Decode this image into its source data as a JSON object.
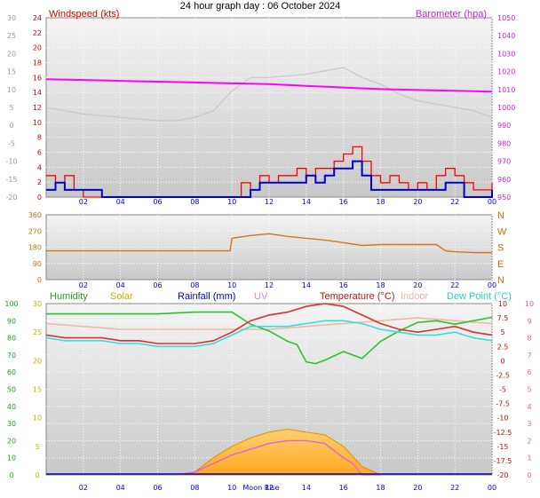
{
  "title": "24 hour graph day : 06 October 2024",
  "colors": {
    "wind_avg": "#0000cc",
    "wind_gust": "#ff0000",
    "barometer": "#ff00ff",
    "temperature_bg": "#c8c8c8",
    "direction": "#d07818",
    "temperature": "#d83030",
    "dew_point": "#30e0e0",
    "humidity": "#30c030",
    "indoor": "#f0b8a0",
    "uv": "#e060e0",
    "solar": "#ffb020",
    "rainfall": "#0000cc"
  },
  "x_ticks": [
    "02",
    "04",
    "06",
    "08",
    "10",
    "12",
    "14",
    "16",
    "18",
    "20",
    "22",
    "00"
  ],
  "moon_rise_label": "Moon Rise",
  "chart_data": [
    {
      "type": "line",
      "panel": "wind-barometer",
      "x_unit": "hours",
      "left_axis": {
        "label": "Windspeed (kts)",
        "ticks": [
          "0",
          "2",
          "4",
          "6",
          "8",
          "10",
          "12",
          "14",
          "16",
          "18",
          "20",
          "22",
          "24"
        ],
        "range": [
          0,
          25
        ]
      },
      "outer_left_axis": {
        "ticks": [
          "-20",
          "-15",
          "-10",
          "-5",
          "0",
          "5",
          "10",
          "15",
          "20",
          "25",
          "30"
        ],
        "range": [
          -22,
          32
        ]
      },
      "right_axis": {
        "label": "Barometer (hpa)",
        "ticks": [
          "950",
          "960",
          "970",
          "980",
          "990",
          "1000",
          "1010",
          "1020",
          "1030",
          "1040",
          "1050"
        ],
        "range": [
          946,
          1054
        ]
      },
      "series": [
        {
          "name": "Barometer (hpa)",
          "axis": "right",
          "x": [
            0,
            2,
            4,
            6,
            8,
            10,
            12,
            14,
            16,
            18,
            20,
            22,
            24
          ],
          "values": [
            1017,
            1016.5,
            1016,
            1015.5,
            1015,
            1014.5,
            1014,
            1013,
            1012,
            1011,
            1010.5,
            1010,
            1009.5
          ]
        },
        {
          "axis": "outer_left",
          "x": [
            0,
            1,
            2,
            4,
            6,
            7,
            8,
            9,
            10,
            11,
            12,
            14,
            15,
            16,
            17,
            18,
            19,
            20,
            21,
            22,
            23,
            24
          ],
          "values": [
            5,
            4,
            3,
            2,
            1,
            1,
            2,
            4,
            10,
            14,
            14,
            15,
            16,
            17,
            14,
            12,
            9,
            7,
            6,
            5,
            4,
            2
          ]
        },
        {
          "axis": "left",
          "x": [
            0,
            0.5,
            1,
            2,
            3,
            4,
            5,
            6,
            7,
            8,
            9,
            10,
            11,
            11.5,
            12,
            13,
            14,
            14.5,
            15,
            15.5,
            16,
            16.5,
            17,
            17.5,
            18,
            19,
            20,
            21,
            21.5,
            22,
            22.5,
            23,
            24
          ],
          "values": [
            1,
            2,
            1,
            1,
            0,
            0,
            0,
            0,
            0,
            0,
            0,
            0,
            1,
            2,
            2,
            2,
            3,
            2,
            3,
            4,
            4,
            5,
            3,
            1,
            1,
            1,
            1,
            1,
            2,
            2,
            0,
            0,
            1
          ]
        },
        {
          "axis": "left",
          "x": [
            0,
            0.5,
            1,
            1.5,
            2,
            3,
            4,
            5,
            6,
            7,
            8,
            9,
            10,
            10.5,
            11,
            11.5,
            12,
            12.5,
            13,
            13.5,
            14,
            14.5,
            15,
            15.5,
            16,
            16.5,
            17,
            17.5,
            18,
            18.5,
            19,
            19.5,
            20,
            20.5,
            21,
            21.5,
            22,
            22.5,
            23,
            23.5,
            24
          ],
          "values": [
            3,
            2,
            3,
            1,
            0,
            0,
            0,
            0,
            0,
            0,
            0,
            0,
            0,
            2,
            1,
            3,
            2,
            3,
            3,
            4,
            3,
            4,
            4,
            5,
            6,
            7,
            5,
            3,
            2,
            3,
            2,
            1,
            2,
            1,
            3,
            4,
            3,
            2,
            1,
            1,
            2
          ]
        }
      ]
    },
    {
      "type": "line",
      "panel": "wind-direction",
      "x_unit": "hours",
      "left_axis": {
        "ticks": [
          "0",
          "90",
          "180",
          "270",
          "360"
        ],
        "range": [
          0,
          360
        ]
      },
      "right_axis": {
        "ticks": [
          "N",
          "E",
          "S",
          "W",
          "N"
        ]
      },
      "series": [
        {
          "axis": "left",
          "x": [
            0,
            2,
            4,
            6,
            8,
            9.9,
            10,
            11,
            12,
            13,
            14,
            15,
            16,
            17,
            18,
            19,
            20,
            21,
            21.5,
            22,
            23,
            24
          ],
          "values": [
            160,
            160,
            160,
            160,
            160,
            160,
            230,
            245,
            255,
            240,
            230,
            220,
            205,
            190,
            195,
            195,
            195,
            195,
            160,
            155,
            150,
            150
          ]
        }
      ]
    },
    {
      "type": "line",
      "panel": "climate",
      "x_unit": "hours",
      "left_axis": {
        "label": "Humidity",
        "ticks": [
          "0",
          "10",
          "20",
          "30",
          "40",
          "50",
          "60",
          "70",
          "80",
          "90",
          "100"
        ],
        "range": [
          0,
          100
        ]
      },
      "solar_axis": {
        "label": "Solar",
        "ticks": [
          "0",
          "5",
          "10",
          "15",
          "20",
          "25",
          "30"
        ],
        "range": [
          0,
          30
        ]
      },
      "rainfall_label": "Rainfall (mm)",
      "uv_label": "UV",
      "right_axis": {
        "label": "Temperature (°C)",
        "ticks": [
          "-20",
          "-17.5",
          "-15",
          "-12.5",
          "-10",
          "-7.5",
          "-5",
          "-2.5",
          "0",
          "2.5",
          "5",
          "7.5",
          "10"
        ],
        "range": [
          -20,
          10
        ]
      },
      "outer_right_axis": {
        "ticks": [
          "0",
          "1",
          "2",
          "3",
          "4",
          "5",
          "6",
          "7",
          "8",
          "9",
          "10"
        ],
        "range": [
          0,
          10
        ]
      },
      "indoor_label": "Indoor",
      "dew_point_label": "Dew Point (°C)",
      "series": [
        {
          "name": "Solar",
          "axis": "solar",
          "x": [
            7,
            8,
            9,
            10,
            11,
            12,
            13,
            14,
            15,
            16,
            17,
            18
          ],
          "values": [
            0,
            0.5,
            3,
            5,
            6.5,
            7.5,
            8,
            7.5,
            7,
            5,
            1.5,
            0
          ]
        },
        {
          "name": "UV",
          "axis": "solar",
          "x": [
            7,
            8,
            9,
            10,
            11,
            12,
            13,
            14,
            15,
            16,
            16.5,
            17,
            18
          ],
          "values": [
            0,
            0.5,
            2,
            3.5,
            4.5,
            5.5,
            6,
            6,
            5.5,
            3,
            2,
            0,
            0
          ]
        },
        {
          "name": "Humidity",
          "axis": "left",
          "x": [
            0,
            2,
            4,
            6,
            8,
            9,
            10,
            11,
            12,
            13,
            13.5,
            14,
            14.5,
            15,
            16,
            17,
            18,
            19,
            20,
            21,
            22,
            23,
            24
          ],
          "values": [
            94,
            94,
            94,
            94,
            95,
            95,
            95,
            88,
            84,
            78,
            76,
            66,
            65,
            67,
            72,
            68,
            78,
            84,
            89,
            90,
            88,
            90,
            92
          ]
        },
        {
          "name": "Indoor",
          "axis": "right",
          "x": [
            0,
            2,
            4,
            6,
            8,
            10,
            12,
            14,
            16,
            18,
            20,
            22,
            24
          ],
          "values": [
            6.5,
            6,
            5.5,
            5.5,
            5.5,
            5.5,
            5.5,
            6,
            6.5,
            7,
            7.5,
            7,
            6.5
          ]
        },
        {
          "name": "Temperature (°C)",
          "axis": "right",
          "x": [
            0,
            1,
            2,
            3,
            4,
            5,
            6,
            7,
            8,
            9,
            10,
            11,
            12,
            13,
            14,
            15,
            16,
            17,
            18,
            19,
            20,
            21,
            22,
            23,
            24
          ],
          "values": [
            4.5,
            4,
            4,
            4,
            3.5,
            3.5,
            3,
            3,
            3,
            3.5,
            5,
            7,
            8,
            8.5,
            9.5,
            10,
            9.5,
            8,
            6.5,
            5.5,
            5,
            5.5,
            6,
            5,
            4.5
          ]
        },
        {
          "name": "Dew Point (°C)",
          "axis": "right",
          "x": [
            0,
            1,
            2,
            3,
            4,
            5,
            6,
            7,
            8,
            9,
            10,
            11,
            12,
            13,
            14,
            15,
            16,
            17,
            18,
            19,
            20,
            21,
            22,
            23,
            24
          ],
          "values": [
            4,
            3.5,
            3.5,
            3.5,
            3,
            3,
            2.5,
            2.5,
            2.5,
            3,
            4.5,
            6,
            6,
            6,
            6.5,
            7,
            7,
            6.5,
            5.5,
            5,
            4.5,
            4.5,
            5,
            4,
            3.5
          ]
        }
      ]
    }
  ]
}
